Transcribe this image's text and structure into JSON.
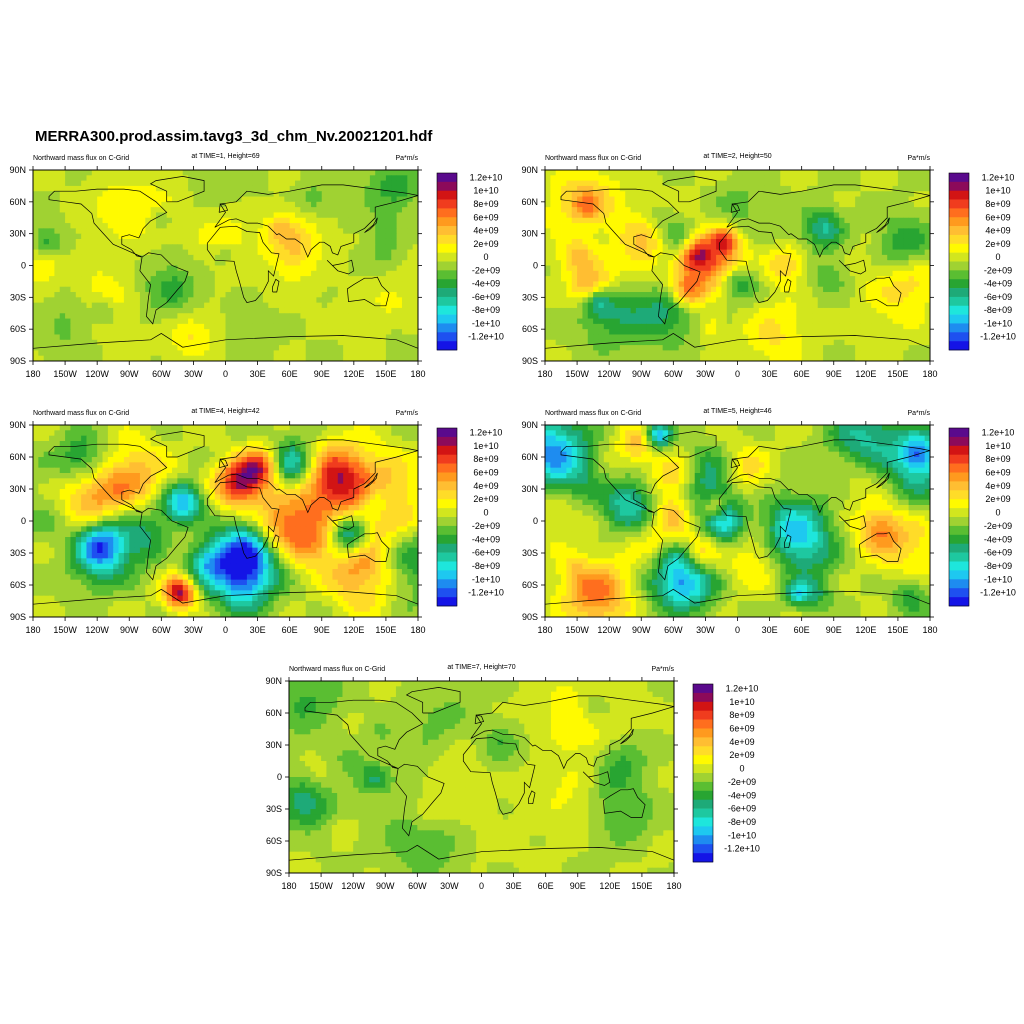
{
  "figure": {
    "title": "MERRA300.prod.assim.tavg3_3d_chm_Nv.20021201.hdf"
  },
  "panels": [
    {
      "left_title": "Northward mass flux on C-Grid",
      "center_title": "at TIME=1, Height=69",
      "units": "Pa*m/s",
      "amplitude": 0.25
    },
    {
      "left_title": "Northward mass flux on C-Grid",
      "center_title": "at TIME=2, Height=50",
      "units": "Pa*m/s",
      "amplitude": 0.55
    },
    {
      "left_title": "Northward mass flux on C-Grid",
      "center_title": "at TIME=4, Height=42",
      "units": "Pa*m/s",
      "amplitude": 0.9
    },
    {
      "left_title": "Northward mass flux on C-Grid",
      "center_title": "at TIME=5, Height=46",
      "units": "Pa*m/s",
      "amplitude": 0.8
    },
    {
      "left_title": "Northward mass flux on C-Grid",
      "center_title": "at TIME=7, Height=70",
      "units": "Pa*m/s",
      "amplitude": 0.3
    }
  ],
  "axes": {
    "lon_labels": [
      "180",
      "150W",
      "120W",
      "90W",
      "60W",
      "30W",
      "0",
      "30E",
      "60E",
      "90E",
      "120E",
      "150E",
      "180"
    ],
    "lat_labels": [
      "90N",
      "60N",
      "30N",
      "0",
      "30S",
      "60S",
      "90S"
    ]
  },
  "colorbar": {
    "labels": [
      "1.2e+10",
      "1e+10",
      "8e+09",
      "6e+09",
      "4e+09",
      "2e+09",
      "0",
      "-2e+09",
      "-4e+09",
      "-6e+09",
      "-8e+09",
      "-1e+10",
      "-1.2e+10"
    ],
    "colors": [
      "#5a0a8c",
      "#8c0a5a",
      "#d21414",
      "#f03c1e",
      "#ff6e1e",
      "#ff9a1e",
      "#ffbe32",
      "#ffdc28",
      "#fffa00",
      "#d2e61e",
      "#a0d232",
      "#5abe32",
      "#28a532",
      "#1eaa78",
      "#1ec8a0",
      "#1ee6dc",
      "#1ec8f0",
      "#1e8cf0",
      "#1e50f0",
      "#1414e6"
    ]
  }
}
